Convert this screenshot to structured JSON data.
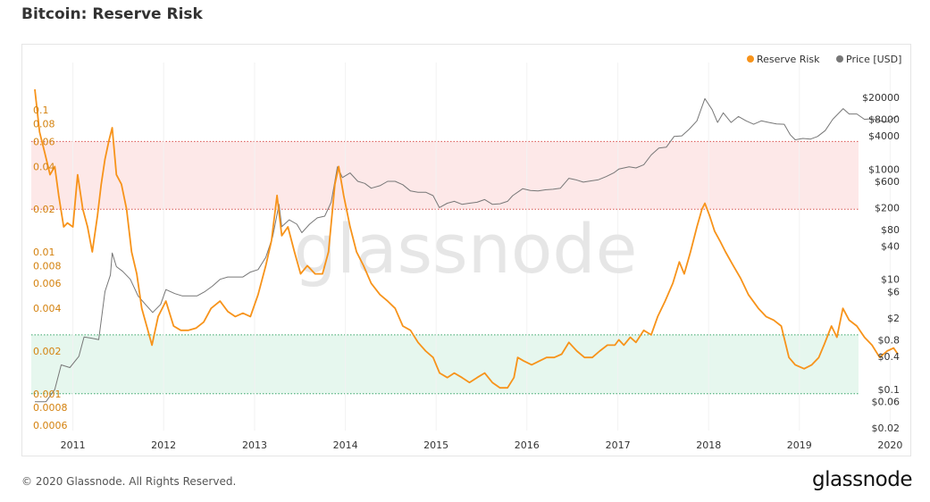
{
  "page": {
    "title": "Bitcoin: Reserve Risk",
    "copyright": "© 2020 Glassnode. All Rights Reserved.",
    "brand": "glassnode",
    "watermark": "glassnode"
  },
  "colors": {
    "reserve_risk": "#f7931a",
    "price": "#777777",
    "red_band_fill": "#fde8e8",
    "red_band_line": "#d9534f",
    "green_band_fill": "#e6f7ee",
    "green_band_line": "#3aa66b",
    "left_axis_text": "#d4820f",
    "right_axis_text": "#333333",
    "watermark": "#e6e6e6"
  },
  "chart_data": {
    "type": "line",
    "title": "Bitcoin: Reserve Risk",
    "x_ticks": [
      "2011",
      "2012",
      "2013",
      "2014",
      "2015",
      "2016",
      "2017",
      "2018",
      "2019",
      "2020"
    ],
    "xlim": [
      "2010-08-01",
      "2020-02-01"
    ],
    "left_axis": {
      "scale": "log",
      "ylim": [
        0.00055,
        0.14
      ],
      "ticks": [
        0.1,
        0.08,
        0.06,
        0.04,
        0.02,
        0.01,
        0.008,
        0.006,
        0.004,
        0.002,
        0.001,
        0.0008,
        0.0006
      ],
      "tick_labels": [
        "0.1",
        "0.08",
        "0.06",
        "0.04",
        "0.02",
        "0.01",
        "0.008",
        "0.006",
        "0.004",
        "0.002",
        "0.001",
        "0.0008",
        "0.0006"
      ]
    },
    "right_axis": {
      "scale": "log",
      "ylim": [
        0.018,
        28000
      ],
      "ticks": [
        20000,
        8000,
        4000,
        1000,
        600,
        200,
        80,
        40,
        10,
        6,
        2,
        0.8,
        0.4,
        0.1,
        0.06,
        0.02
      ],
      "tick_labels": [
        "$20000",
        "$8000",
        "$4000",
        "$1000",
        "$600",
        "$200",
        "$80",
        "$40",
        "$10",
        "$6",
        "$2",
        "$0.8",
        "$0.4",
        "$0.1",
        "$0.06",
        "$0.02"
      ]
    },
    "bands": [
      {
        "name": "high",
        "from": 0.02,
        "to": 0.06
      },
      {
        "name": "low",
        "from": 0.001,
        "to": 0.0026
      }
    ],
    "legend": {
      "position": "top-right",
      "items": [
        "Reserve Risk",
        "Price [USD]"
      ]
    },
    "series": [
      {
        "name": "Reserve Risk",
        "axis": "left",
        "x": [
          "2010-08-01",
          "2010-08-20",
          "2010-09-10",
          "2010-10-01",
          "2010-10-20",
          "2010-11-05",
          "2010-11-25",
          "2010-12-10",
          "2011-01-01",
          "2011-01-20",
          "2011-02-10",
          "2011-03-01",
          "2011-03-20",
          "2011-04-10",
          "2011-04-25",
          "2011-05-10",
          "2011-05-25",
          "2011-06-08",
          "2011-06-25",
          "2011-07-15",
          "2011-08-05",
          "2011-08-25",
          "2011-09-15",
          "2011-10-05",
          "2011-10-25",
          "2011-11-15",
          "2011-12-10",
          "2012-01-10",
          "2012-02-10",
          "2012-03-10",
          "2012-04-10",
          "2012-05-10",
          "2012-06-10",
          "2012-07-10",
          "2012-08-15",
          "2012-09-15",
          "2012-10-15",
          "2012-11-15",
          "2012-12-15",
          "2013-01-15",
          "2013-02-15",
          "2013-03-10",
          "2013-04-01",
          "2013-04-20",
          "2013-05-15",
          "2013-06-10",
          "2013-07-05",
          "2013-08-01",
          "2013-09-01",
          "2013-10-01",
          "2013-10-25",
          "2013-11-20",
          "2013-12-05",
          "2013-12-25",
          "2014-01-20",
          "2014-02-15",
          "2014-03-15",
          "2014-04-15",
          "2014-05-20",
          "2014-06-20",
          "2014-07-20",
          "2014-08-20",
          "2014-09-20",
          "2014-10-20",
          "2014-11-20",
          "2014-12-20",
          "2015-01-15",
          "2015-02-15",
          "2015-03-15",
          "2015-04-15",
          "2015-05-15",
          "2015-06-15",
          "2015-07-15",
          "2015-08-15",
          "2015-09-15",
          "2015-10-15",
          "2015-11-10",
          "2015-11-25",
          "2015-12-20",
          "2016-01-20",
          "2016-02-20",
          "2016-03-20",
          "2016-04-20",
          "2016-05-20",
          "2016-06-18",
          "2016-07-20",
          "2016-08-20",
          "2016-09-20",
          "2016-10-20",
          "2016-11-20",
          "2016-12-20",
          "2017-01-05",
          "2017-01-25",
          "2017-02-20",
          "2017-03-15",
          "2017-04-15",
          "2017-05-15",
          "2017-06-10",
          "2017-07-10",
          "2017-08-10",
          "2017-09-05",
          "2017-09-25",
          "2017-10-20",
          "2017-11-15",
          "2017-12-05",
          "2017-12-17",
          "2018-01-05",
          "2018-01-25",
          "2018-02-15",
          "2018-03-10",
          "2018-04-10",
          "2018-05-10",
          "2018-06-10",
          "2018-07-20",
          "2018-08-20",
          "2018-09-20",
          "2018-10-20",
          "2018-11-20",
          "2018-12-15",
          "2019-01-20",
          "2019-02-20",
          "2019-03-20",
          "2019-04-10",
          "2019-05-10",
          "2019-06-01",
          "2019-06-25",
          "2019-07-20",
          "2019-08-20",
          "2019-09-20",
          "2019-10-20",
          "2019-11-20",
          "2019-12-20",
          "2020-01-15",
          "2020-02-01"
        ],
        "y": [
          0.14,
          0.07,
          0.05,
          0.035,
          0.04,
          0.025,
          0.015,
          0.016,
          0.015,
          0.035,
          0.02,
          0.015,
          0.01,
          0.018,
          0.03,
          0.045,
          0.06,
          0.075,
          0.035,
          0.03,
          0.02,
          0.01,
          0.007,
          0.004,
          0.003,
          0.0022,
          0.0035,
          0.0045,
          0.003,
          0.0028,
          0.0028,
          0.0029,
          0.0032,
          0.004,
          0.0045,
          0.0038,
          0.0035,
          0.0037,
          0.0035,
          0.005,
          0.008,
          0.012,
          0.025,
          0.013,
          0.015,
          0.01,
          0.007,
          0.008,
          0.007,
          0.007,
          0.01,
          0.03,
          0.04,
          0.025,
          0.015,
          0.01,
          0.008,
          0.006,
          0.005,
          0.0045,
          0.004,
          0.003,
          0.0028,
          0.0023,
          0.002,
          0.0018,
          0.0014,
          0.0013,
          0.0014,
          0.0013,
          0.0012,
          0.0013,
          0.0014,
          0.0012,
          0.0011,
          0.0011,
          0.0013,
          0.0018,
          0.0017,
          0.0016,
          0.0017,
          0.0018,
          0.0018,
          0.0019,
          0.0023,
          0.002,
          0.0018,
          0.0018,
          0.002,
          0.0022,
          0.0022,
          0.0024,
          0.0022,
          0.0025,
          0.0023,
          0.0028,
          0.0026,
          0.0035,
          0.0045,
          0.006,
          0.0085,
          0.007,
          0.01,
          0.015,
          0.02,
          0.022,
          0.018,
          0.014,
          0.012,
          0.01,
          0.008,
          0.0065,
          0.005,
          0.004,
          0.0035,
          0.0033,
          0.003,
          0.0018,
          0.0016,
          0.0015,
          0.0016,
          0.0018,
          0.0022,
          0.003,
          0.0025,
          0.004,
          0.0033,
          0.003,
          0.0025,
          0.0022,
          0.0018,
          0.002,
          0.0021,
          0.0019
        ]
      },
      {
        "name": "Price [USD]",
        "axis": "right",
        "x": [
          "2010-08-01",
          "2010-09-15",
          "2010-10-20",
          "2010-11-15",
          "2010-12-20",
          "2011-01-25",
          "2011-02-15",
          "2011-03-20",
          "2011-04-15",
          "2011-05-10",
          "2011-06-01",
          "2011-06-08",
          "2011-06-25",
          "2011-07-20",
          "2011-08-20",
          "2011-09-20",
          "2011-10-20",
          "2011-11-18",
          "2011-12-20",
          "2012-01-10",
          "2012-02-15",
          "2012-03-15",
          "2012-04-15",
          "2012-05-15",
          "2012-06-15",
          "2012-07-15",
          "2012-08-15",
          "2012-09-15",
          "2012-10-15",
          "2012-11-15",
          "2012-12-15",
          "2013-01-15",
          "2013-02-15",
          "2013-03-15",
          "2013-04-09",
          "2013-04-20",
          "2013-05-20",
          "2013-06-20",
          "2013-07-10",
          "2013-08-10",
          "2013-09-10",
          "2013-10-10",
          "2013-11-05",
          "2013-11-30",
          "2013-12-20",
          "2014-01-20",
          "2014-02-20",
          "2014-03-20",
          "2014-04-15",
          "2014-05-20",
          "2014-06-20",
          "2014-07-20",
          "2014-08-20",
          "2014-09-20",
          "2014-10-20",
          "2014-11-20",
          "2014-12-20",
          "2015-01-14",
          "2015-02-15",
          "2015-03-15",
          "2015-04-15",
          "2015-05-15",
          "2015-06-15",
          "2015-07-15",
          "2015-08-15",
          "2015-09-15",
          "2015-10-15",
          "2015-11-05",
          "2015-12-15",
          "2016-01-15",
          "2016-02-15",
          "2016-03-15",
          "2016-04-15",
          "2016-05-15",
          "2016-06-18",
          "2016-07-15",
          "2016-08-15",
          "2016-09-15",
          "2016-10-15",
          "2016-11-15",
          "2016-12-15",
          "2017-01-05",
          "2017-02-15",
          "2017-03-15",
          "2017-04-15",
          "2017-05-15",
          "2017-06-15",
          "2017-07-15",
          "2017-08-15",
          "2017-09-15",
          "2017-10-15",
          "2017-11-15",
          "2017-12-17",
          "2018-01-15",
          "2018-02-06",
          "2018-03-01",
          "2018-04-01",
          "2018-05-01",
          "2018-06-01",
          "2018-07-01",
          "2018-08-01",
          "2018-09-01",
          "2018-10-01",
          "2018-11-01",
          "2018-11-25",
          "2018-12-15",
          "2019-01-15",
          "2019-02-15",
          "2019-03-15",
          "2019-04-15",
          "2019-05-15",
          "2019-06-26",
          "2019-07-20",
          "2019-08-20",
          "2019-09-20",
          "2019-10-20",
          "2019-11-20",
          "2019-12-20",
          "2020-01-15",
          "2020-02-01"
        ],
        "y": [
          0.06,
          0.06,
          0.1,
          0.28,
          0.25,
          0.4,
          0.9,
          0.85,
          0.8,
          6,
          12,
          30,
          17,
          14,
          10,
          5,
          3.5,
          2.5,
          3.5,
          6.5,
          5.5,
          5,
          5,
          5,
          6,
          7.5,
          10,
          11,
          11,
          11,
          13.5,
          15,
          25,
          60,
          230,
          90,
          120,
          100,
          70,
          100,
          130,
          140,
          250,
          1100,
          700,
          850,
          600,
          550,
          450,
          500,
          600,
          600,
          520,
          400,
          380,
          380,
          330,
          200,
          240,
          260,
          230,
          240,
          250,
          280,
          230,
          235,
          260,
          330,
          440,
          410,
          400,
          420,
          430,
          450,
          680,
          640,
          580,
          610,
          640,
          730,
          850,
          1000,
          1100,
          1050,
          1200,
          1800,
          2400,
          2500,
          3900,
          4000,
          5300,
          7500,
          19000,
          12000,
          7000,
          10500,
          7000,
          9000,
          7500,
          6500,
          7500,
          7000,
          6600,
          6500,
          4200,
          3400,
          3600,
          3500,
          3900,
          5000,
          8000,
          12500,
          10000,
          10000,
          8000,
          8200,
          7500,
          7200,
          8500,
          9300
        ]
      }
    ]
  }
}
